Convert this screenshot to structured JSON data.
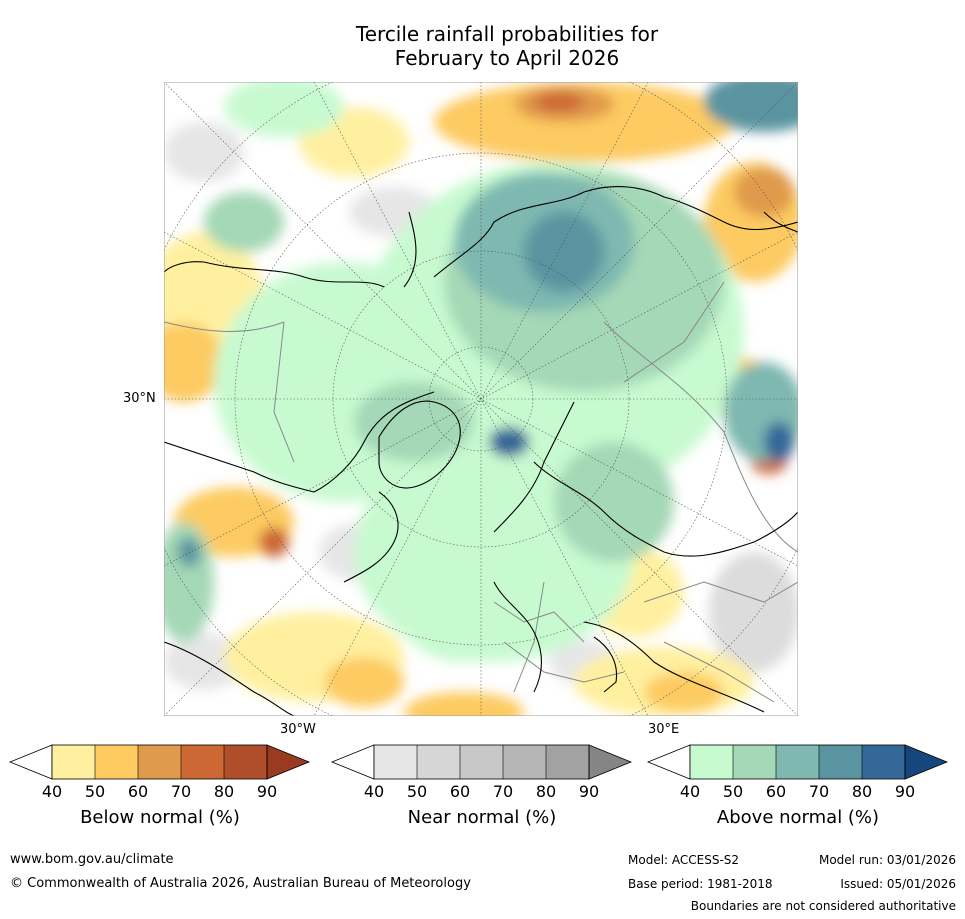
{
  "title": {
    "line1": "Tercile rainfall probabilities for",
    "line2": "February to April 2026"
  },
  "map": {
    "projection": "north polar stereographic",
    "label_30n": "30°N",
    "label_30w": "30°W",
    "label_30e": "30°E",
    "background_color": "#ffffff",
    "coast_color": "#000000",
    "border_color": "#888888"
  },
  "colorbars": [
    {
      "id": "below",
      "label": "Below normal (%)",
      "ticks": [
        "40",
        "50",
        "60",
        "70",
        "80",
        "90"
      ],
      "colors": [
        "#fff0a0",
        "#fdcb62",
        "#e09a4b",
        "#cc6834",
        "#b04e2c",
        "#993b20"
      ]
    },
    {
      "id": "near",
      "label": "Near normal (%)",
      "ticks": [
        "40",
        "50",
        "60",
        "70",
        "80",
        "90"
      ],
      "colors": [
        "#e6e6e6",
        "#d6d6d6",
        "#c8c8c8",
        "#b6b6b6",
        "#a2a2a2",
        "#858585"
      ]
    },
    {
      "id": "above",
      "label": "Above normal (%)",
      "ticks": [
        "40",
        "50",
        "60",
        "70",
        "80",
        "90"
      ],
      "colors": [
        "#c8fad0",
        "#a4d8b6",
        "#7eb8b0",
        "#5a94a0",
        "#346898",
        "#17467e"
      ]
    }
  ],
  "footer": {
    "website": "www.bom.gov.au/climate",
    "copyright": "© Commonwealth of Australia 2026, Australian Bureau of Meteorology",
    "model": "Model: ACCESS-S2",
    "base_period": "Base period: 1981-2018",
    "model_run": "Model run: 03/01/2026",
    "issued": "Issued: 05/01/2026",
    "disclaimer": "Boundaries are not considered authoritative"
  }
}
